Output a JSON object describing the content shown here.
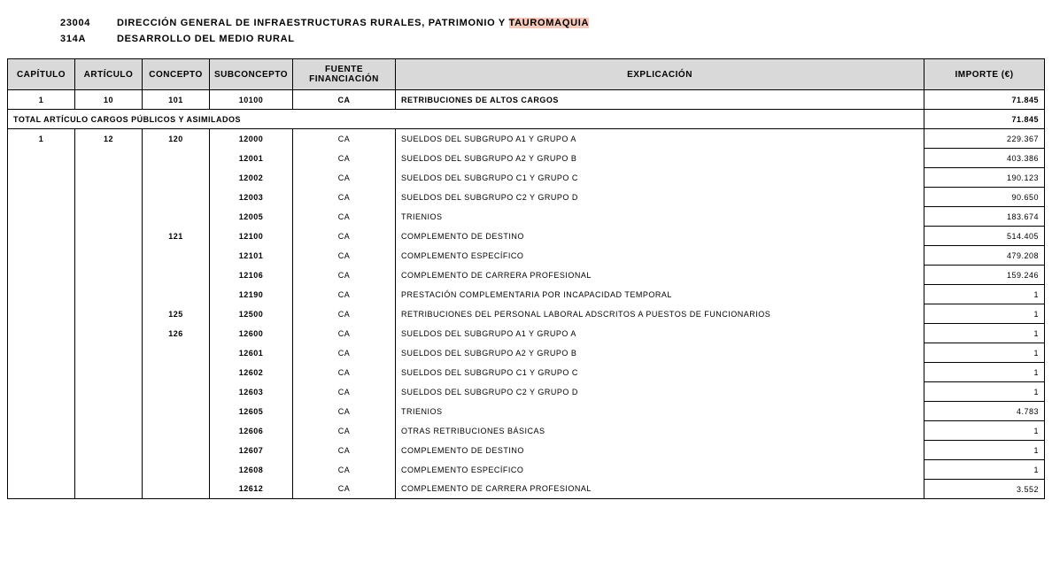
{
  "header": {
    "org_code": "23004",
    "org_name_pre": "DIRECCIÓN  GENERAL  DE  INFRAESTRUCTURAS  RURALES,  PATRIMONIO  Y  ",
    "org_name_hl": "TAUROMAQUIA",
    "prog_code": "314A",
    "prog_name": "DESARROLLO  DEL  MEDIO  RURAL"
  },
  "columns": {
    "capitulo": "CAPÍTULO",
    "articulo": "ARTÍCULO",
    "concepto": "CONCEPTO",
    "subconcepto": "SUBCONCEPTO",
    "fuente": "FUENTE FINANCIACIÓN",
    "explicacion": "EXPLICACIÓN",
    "importe": "IMPORTE (€)"
  },
  "rows": [
    {
      "cap": "1",
      "art": "10",
      "con": "101",
      "sub": "10100",
      "fue": "CA",
      "exp": "RETRIBUCIONES  DE  ALTOS  CARGOS",
      "imp": "71.845",
      "cls": "bold-row"
    },
    {
      "total": true,
      "exp": "TOTAL  ARTÍCULO  CARGOS  PÚBLICOS  Y  ASIMILADOS",
      "imp": "71.845"
    },
    {
      "cap": "1",
      "art": "12",
      "con": "120",
      "sub": "12000",
      "fue": "CA",
      "exp": "SUELDOS  DEL  SUBGRUPO  A1  Y  GRUPO  A",
      "imp": "229.367",
      "cls": "first-data"
    },
    {
      "cap": "",
      "art": "",
      "con": "",
      "sub": "12001",
      "fue": "CA",
      "exp": "SUELDOS  DEL  SUBGRUPO  A2  Y  GRUPO  B",
      "imp": "403.386",
      "cls": "noborder-lr"
    },
    {
      "cap": "",
      "art": "",
      "con": "",
      "sub": "12002",
      "fue": "CA",
      "exp": "SUELDOS  DEL  SUBGRUPO  C1  Y  GRUPO  C",
      "imp": "190.123",
      "cls": "noborder-lr"
    },
    {
      "cap": "",
      "art": "",
      "con": "",
      "sub": "12003",
      "fue": "CA",
      "exp": "SUELDOS  DEL  SUBGRUPO  C2  Y  GRUPO  D",
      "imp": "90.650",
      "cls": "noborder-lr"
    },
    {
      "cap": "",
      "art": "",
      "con": "",
      "sub": "12005",
      "fue": "CA",
      "exp": "TRIENIOS",
      "imp": "183.674",
      "cls": "noborder-lr"
    },
    {
      "cap": "",
      "art": "",
      "con": "121",
      "sub": "12100",
      "fue": "CA",
      "exp": "COMPLEMENTO  DE  DESTINO",
      "imp": "514.405",
      "cls": "noborder-lr"
    },
    {
      "cap": "",
      "art": "",
      "con": "",
      "sub": "12101",
      "fue": "CA",
      "exp": "COMPLEMENTO  ESPECÍFICO",
      "imp": "479.208",
      "cls": "noborder-lr"
    },
    {
      "cap": "",
      "art": "",
      "con": "",
      "sub": "12106",
      "fue": "CA",
      "exp": "COMPLEMENTO  DE  CARRERA  PROFESIONAL",
      "imp": "159.246",
      "cls": "noborder-lr"
    },
    {
      "cap": "",
      "art": "",
      "con": "",
      "sub": "12190",
      "fue": "CA",
      "exp": "PRESTACIÓN  COMPLEMENTARIA  POR  INCAPACIDAD  TEMPORAL",
      "imp": "1",
      "cls": "noborder-lr"
    },
    {
      "cap": "",
      "art": "",
      "con": "125",
      "sub": "12500",
      "fue": "CA",
      "exp": "RETRIBUCIONES  DEL  PERSONAL  LABORAL  ADSCRITOS  A  PUESTOS  DE  FUNCIONARIOS",
      "imp": "1",
      "cls": "noborder-lr"
    },
    {
      "cap": "",
      "art": "",
      "con": "126",
      "sub": "12600",
      "fue": "CA",
      "exp": "SUELDOS  DEL  SUBGRUPO  A1  Y  GRUPO  A",
      "imp": "1",
      "cls": "noborder-lr"
    },
    {
      "cap": "",
      "art": "",
      "con": "",
      "sub": "12601",
      "fue": "CA",
      "exp": "SUELDOS  DEL  SUBGRUPO  A2  Y  GRUPO  B",
      "imp": "1",
      "cls": "noborder-lr"
    },
    {
      "cap": "",
      "art": "",
      "con": "",
      "sub": "12602",
      "fue": "CA",
      "exp": "SUELDOS  DEL  SUBGRUPO  C1  Y  GRUPO  C",
      "imp": "1",
      "cls": "noborder-lr"
    },
    {
      "cap": "",
      "art": "",
      "con": "",
      "sub": "12603",
      "fue": "CA",
      "exp": "SUELDOS  DEL  SUBGRUPO  C2  Y  GRUPO  D",
      "imp": "1",
      "cls": "noborder-lr"
    },
    {
      "cap": "",
      "art": "",
      "con": "",
      "sub": "12605",
      "fue": "CA",
      "exp": "TRIENIOS",
      "imp": "4.783",
      "cls": "noborder-lr"
    },
    {
      "cap": "",
      "art": "",
      "con": "",
      "sub": "12606",
      "fue": "CA",
      "exp": "OTRAS  RETRIBUCIONES  BÁSICAS",
      "imp": "1",
      "cls": "noborder-lr"
    },
    {
      "cap": "",
      "art": "",
      "con": "",
      "sub": "12607",
      "fue": "CA",
      "exp": "COMPLEMENTO  DE  DESTINO",
      "imp": "1",
      "cls": "noborder-lr"
    },
    {
      "cap": "",
      "art": "",
      "con": "",
      "sub": "12608",
      "fue": "CA",
      "exp": "COMPLEMENTO  ESPECÍFICO",
      "imp": "1",
      "cls": "noborder-lr"
    },
    {
      "cap": "",
      "art": "",
      "con": "",
      "sub": "12612",
      "fue": "CA",
      "exp": "COMPLEMENTO  DE  CARRERA  PROFESIONAL",
      "imp": "3.552",
      "cls": "last-row"
    }
  ],
  "style": {
    "header_bg": "#d9d9d9",
    "highlight_bg": "#f9c9b8",
    "border_color": "#000000",
    "font_family": "Arial",
    "body_font_size": 10,
    "cell_font_size": 9
  }
}
